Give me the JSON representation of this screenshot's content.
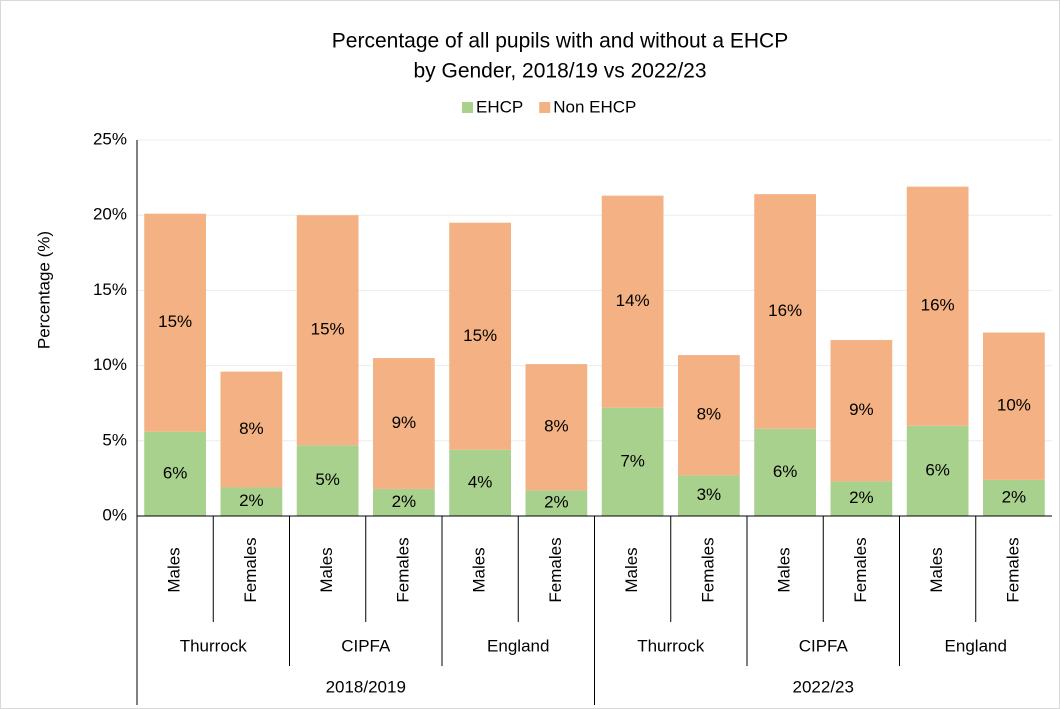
{
  "chart_data": {
    "type": "stacked_bar",
    "title": [
      "Percentage of all pupils with and without a EHCP",
      "by Gender, 2018/19 vs 2022/23"
    ],
    "y_label": "Percentage (%)",
    "categories": [
      "Males",
      "Females",
      "Males",
      "Females",
      "Males",
      "Females",
      "Males",
      "Females",
      "Males",
      "Females",
      "Males",
      "Females"
    ],
    "category_groups": [
      "Thurrock",
      "CIPFA",
      "England",
      "Thurrock",
      "CIPFA",
      "England"
    ],
    "category_supergroups": [
      "2018/2019",
      "2022/23"
    ],
    "series": [
      {
        "name": "EHCP",
        "color": "#a9d18e",
        "values": [
          5.6,
          1.9,
          4.7,
          1.8,
          4.4,
          1.7,
          7.2,
          2.7,
          5.8,
          2.3,
          6.0,
          2.4
        ],
        "value_labels": [
          "6%",
          "2%",
          "5%",
          "2%",
          "4%",
          "2%",
          "7%",
          "3%",
          "6%",
          "2%",
          "6%",
          "2%"
        ]
      },
      {
        "name": "Non EHCP",
        "color": "#f4b183",
        "values": [
          14.5,
          7.7,
          15.3,
          8.7,
          15.1,
          8.4,
          14.1,
          8.0,
          15.6,
          9.4,
          15.9,
          9.8
        ],
        "value_labels": [
          "15%",
          "8%",
          "15%",
          "9%",
          "15%",
          "8%",
          "14%",
          "8%",
          "16%",
          "9%",
          "16%",
          "10%"
        ]
      }
    ],
    "ylim": [
      0,
      25
    ],
    "yticks": [
      {
        "value": 0,
        "label": "0%"
      },
      {
        "value": 5,
        "label": "5%"
      },
      {
        "value": 10,
        "label": "10%"
      },
      {
        "value": 15,
        "label": "15%"
      },
      {
        "value": 20,
        "label": "20%"
      },
      {
        "value": 25,
        "label": "25%"
      }
    ],
    "grid": true,
    "legend": "top"
  }
}
